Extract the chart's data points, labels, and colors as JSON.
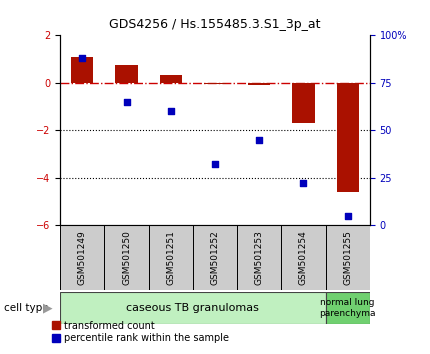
{
  "title": "GDS4256 / Hs.155485.3.S1_3p_at",
  "samples": [
    "GSM501249",
    "GSM501250",
    "GSM501251",
    "GSM501252",
    "GSM501253",
    "GSM501254",
    "GSM501255"
  ],
  "transformed_count": [
    1.1,
    0.75,
    0.35,
    -0.05,
    -0.1,
    -1.7,
    -4.6
  ],
  "percentile_rank": [
    88,
    65,
    60,
    32,
    45,
    22,
    5
  ],
  "ylim_left": [
    -6,
    2
  ],
  "ylim_right": [
    0,
    100
  ],
  "yticks_left": [
    -6,
    -4,
    -2,
    0,
    2
  ],
  "yticks_right": [
    0,
    25,
    50,
    75,
    100
  ],
  "ytick_labels_right": [
    "0",
    "25",
    "50",
    "75",
    "100%"
  ],
  "bar_color_red": "#aa1100",
  "bar_color_blue": "#0000bb",
  "hline_color": "#cc0000",
  "group1_color": "#c0f0c0",
  "group2_color": "#70d070",
  "sample_box_color": "#cccccc",
  "legend_red": "transformed count",
  "legend_blue": "percentile rank within the sample",
  "group1_label": "caseous TB granulomas",
  "group2_label": "normal lung\nparenchyma",
  "cell_type_label": "cell type"
}
